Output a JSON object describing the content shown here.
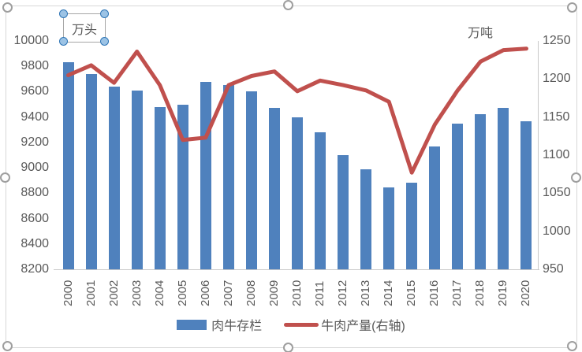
{
  "chart_data": {
    "type": "combo-bar-line",
    "categories": [
      "2000",
      "2001",
      "2002",
      "2003",
      "2004",
      "2005",
      "2006",
      "2007",
      "2008",
      "2009",
      "2010",
      "2011",
      "2012",
      "2013",
      "2014",
      "2015",
      "2016",
      "2017",
      "2018",
      "2019",
      "2020"
    ],
    "series": [
      {
        "name": "肉牛存栏",
        "type": "bar",
        "axis": "left",
        "color": "#4f81bd",
        "values": [
          9830,
          9740,
          9640,
          9610,
          9480,
          9500,
          9675,
          9650,
          9600,
          9470,
          9400,
          9280,
          9100,
          8990,
          8845,
          8885,
          9170,
          9350,
          9420,
          9470,
          9370
        ]
      },
      {
        "name": "牛肉产量(右轴)",
        "type": "line",
        "axis": "right",
        "color": "#c0504d",
        "values": [
          1205,
          1218,
          1195,
          1236,
          1192,
          1120,
          1123,
          1192,
          1204,
          1210,
          1184,
          1198,
          1192,
          1185,
          1170,
          1077,
          1140,
          1185,
          1223,
          1238,
          1240
        ]
      }
    ],
    "left_axis": {
      "unit": "万头",
      "min": 8200,
      "max": 10000,
      "step": 200,
      "tick_labels": [
        "10000",
        "9800",
        "9600",
        "9400",
        "9200",
        "9000",
        "8800",
        "8600",
        "8400",
        "8200"
      ]
    },
    "right_axis": {
      "unit": "万吨",
      "min": 950,
      "max": 1250,
      "step": 50,
      "tick_labels": [
        "1250",
        "1200",
        "1150",
        "1100",
        "1050",
        "1000",
        "950"
      ]
    },
    "legend_position": "bottom",
    "gridlines": false,
    "title": ""
  },
  "ui": {
    "text_color": "#595959",
    "axis_line_color": "#c9c9c9",
    "selection": {
      "chart_selected": true,
      "unit_textbox_selected": true
    }
  }
}
